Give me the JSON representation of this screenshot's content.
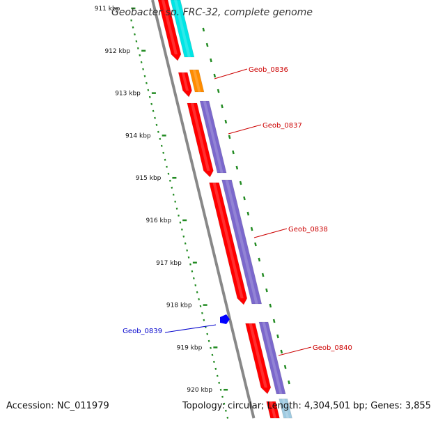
{
  "title": "Geobacter sp. FRC-32, complete genome",
  "accession": "Accession: NC_011979",
  "topology": "Topology: circular; Length: 4,304,501 bp; Genes: 3,855",
  "ruler": {
    "labels": [
      "911 kbp",
      "912 kbp",
      "913 kbp",
      "914 kbp",
      "915 kbp",
      "916 kbp",
      "917 kbp",
      "918 kbp",
      "919 kbp",
      "920 kbp"
    ],
    "color": "#228b22"
  },
  "colors": {
    "gene_red": "#ff0000",
    "cds_purple": "#7b68cc",
    "cds_cyan": "#00e5e5",
    "cds_orange": "#ff8c00",
    "cds_lightblue": "#9ecae1",
    "backbone": "#888888",
    "label_red": "#cc0000",
    "label_blue": "#0000cc",
    "marker_blue": "#0000ff"
  },
  "gene_labels": [
    {
      "name": "Geob_0836",
      "color": "#cc0000"
    },
    {
      "name": "Geob_0837",
      "color": "#cc0000"
    },
    {
      "name": "Geob_0838",
      "color": "#cc0000"
    },
    {
      "name": "Geob_0839",
      "color": "#0000cc"
    },
    {
      "name": "Geob_0840",
      "color": "#cc0000"
    }
  ]
}
